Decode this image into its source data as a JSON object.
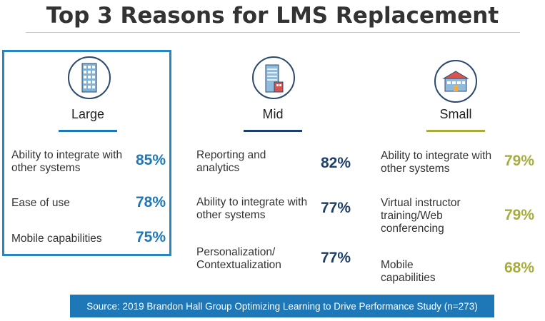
{
  "title": "Top 3 Reasons for LMS Replacement",
  "colors": {
    "large": "#1e78b8",
    "mid": "#1f3f6b",
    "small": "#a6ad3a",
    "frame": "#2a86c0"
  },
  "chart_data": {
    "type": "table",
    "title": "Top 3 Reasons for LMS Replacement",
    "groups": [
      {
        "name": "Large",
        "icon": "skyscraper-icon",
        "rows": [
          {
            "label": "Ability to integrate with other systems",
            "value": 85,
            "display": "85%"
          },
          {
            "label": "Ease of use",
            "value": 78,
            "display": "78%"
          },
          {
            "label": "Mobile capabilities",
            "value": 75,
            "display": "75%"
          }
        ]
      },
      {
        "name": "Mid",
        "icon": "office-building-icon",
        "rows": [
          {
            "label": "Reporting and analytics",
            "value": 82,
            "display": "82%"
          },
          {
            "label": "Ability to integrate with other systems",
            "value": 77,
            "display": "77%"
          },
          {
            "label": "Personalization/ Contextualization",
            "value": 77,
            "display": "77%"
          }
        ]
      },
      {
        "name": "Small",
        "icon": "small-building-icon",
        "rows": [
          {
            "label": "Ability to integrate with other systems",
            "value": 79,
            "display": "79%"
          },
          {
            "label": "Virtual instructor training/Web conferencing",
            "value": 79,
            "display": "79%"
          },
          {
            "label": "Mobile capabilities",
            "value": 68,
            "display": "68%"
          }
        ]
      }
    ]
  },
  "source": "Source: 2019 Brandon Hall Group Optimizing Learning to Drive Performance Study (n=273)"
}
